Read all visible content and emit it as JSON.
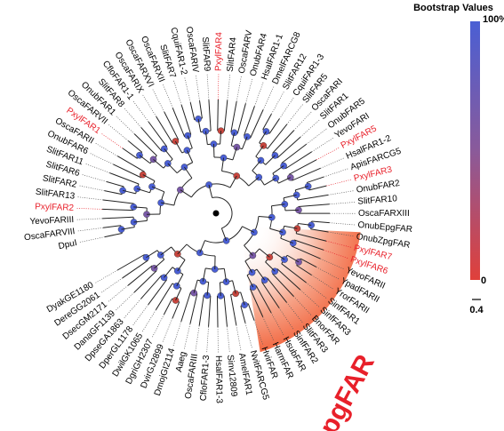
{
  "legend": {
    "title": "Bootstrap Values",
    "max_label": "100%",
    "min_label": "0"
  },
  "scale_bar": "0.4",
  "clade_label": "pgFAR",
  "leaves": [
    {
      "label": "DpuI",
      "color": "#000000"
    },
    {
      "label": "OscaFARVIII",
      "color": "#000000"
    },
    {
      "label": "YevoFARIII",
      "color": "#000000"
    },
    {
      "label": "PxylFAR2",
      "color": "#e8202a"
    },
    {
      "label": "SlitFAR13",
      "color": "#000000"
    },
    {
      "label": "SlitFAR2",
      "color": "#000000"
    },
    {
      "label": "SlitFAR6",
      "color": "#000000"
    },
    {
      "label": "SlitFAR11",
      "color": "#000000"
    },
    {
      "label": "OnubFAR6",
      "color": "#000000"
    },
    {
      "label": "OscaFARII",
      "color": "#000000"
    },
    {
      "label": "PxylFAR1",
      "color": "#e8202a"
    },
    {
      "label": "OscaFARVII",
      "color": "#000000"
    },
    {
      "label": "OnubFAR1",
      "color": "#000000"
    },
    {
      "label": "SlitFAR8",
      "color": "#000000"
    },
    {
      "label": "CfloFAR1-1",
      "color": "#000000"
    },
    {
      "label": "OscaFARIX",
      "color": "#000000"
    },
    {
      "label": "OscaFARXVI",
      "color": "#000000"
    },
    {
      "label": "OscaFARXII",
      "color": "#000000"
    },
    {
      "label": "SlitFAR7",
      "color": "#000000"
    },
    {
      "label": "CquiFAR1-2",
      "color": "#000000"
    },
    {
      "label": "OscaFARIV",
      "color": "#000000"
    },
    {
      "label": "SlitFAR9",
      "color": "#000000"
    },
    {
      "label": "PxylFAR4",
      "color": "#e8202a"
    },
    {
      "label": "SlitFAR4",
      "color": "#000000"
    },
    {
      "label": "OscaFARV",
      "color": "#000000"
    },
    {
      "label": "OnubFAR4",
      "color": "#000000"
    },
    {
      "label": "HsalFAR1-1",
      "color": "#000000"
    },
    {
      "label": "DmelFARCG8",
      "color": "#000000"
    },
    {
      "label": "SlitFAR12",
      "color": "#000000"
    },
    {
      "label": "CquiFAR1-3",
      "color": "#000000"
    },
    {
      "label": "SlitFAR5",
      "color": "#000000"
    },
    {
      "label": "OscaFARI",
      "color": "#000000"
    },
    {
      "label": "SlitFAR1",
      "color": "#000000"
    },
    {
      "label": "OnubFAR5",
      "color": "#000000"
    },
    {
      "label": "YevoFARI",
      "color": "#000000"
    },
    {
      "label": "PxylFAR5",
      "color": "#e8202a"
    },
    {
      "label": "HsalFAR1-2",
      "color": "#000000"
    },
    {
      "label": "ApisFARCG5",
      "color": "#000000"
    },
    {
      "label": "PxylFAR3",
      "color": "#e8202a"
    },
    {
      "label": "OnubFAR2",
      "color": "#000000"
    },
    {
      "label": "SlitFAR10",
      "color": "#000000"
    },
    {
      "label": "OscaFARXIII",
      "color": "#000000"
    },
    {
      "label": "OnubEpgFAR",
      "color": "#000000"
    },
    {
      "label": "OnubZpgFAR",
      "color": "#000000"
    },
    {
      "label": "PxylFAR7",
      "color": "#e8202a"
    },
    {
      "label": "PxylFAR6",
      "color": "#e8202a"
    },
    {
      "label": "YevoFARII",
      "color": "#000000"
    },
    {
      "label": "YpadFARII",
      "color": "#000000"
    },
    {
      "label": "YrorFARII",
      "color": "#000000"
    },
    {
      "label": "SinfFAR1",
      "color": "#000000"
    },
    {
      "label": "SinfFAR3",
      "color": "#000000"
    },
    {
      "label": "BnorFAR",
      "color": "#000000"
    },
    {
      "label": "SlitFAR3",
      "color": "#000000"
    },
    {
      "label": "SinfFAR2",
      "color": "#000000"
    },
    {
      "label": "HsubFAR",
      "color": "#000000"
    },
    {
      "label": "HarmFAR",
      "color": "#000000"
    },
    {
      "label": "HvirFAR",
      "color": "#000000"
    },
    {
      "label": "NvitFARCG5",
      "color": "#000000"
    },
    {
      "label": "AmelFAR1",
      "color": "#000000"
    },
    {
      "label": "Sinv12809",
      "color": "#000000"
    },
    {
      "label": "HsalFAR1-3",
      "color": "#000000"
    },
    {
      "label": "CfloFAR1-3",
      "color": "#000000"
    },
    {
      "label": "OscaFARIII",
      "color": "#000000"
    },
    {
      "label": "Aaeg",
      "color": "#000000"
    },
    {
      "label": "DmojGI2114",
      "color": "#000000"
    },
    {
      "label": "DvirGJ2899",
      "color": "#000000"
    },
    {
      "label": "DgriGH2307",
      "color": "#000000"
    },
    {
      "label": "DwilGK1065",
      "color": "#000000"
    },
    {
      "label": "DperGL1178",
      "color": "#000000"
    },
    {
      "label": "DpseGA1863",
      "color": "#000000"
    },
    {
      "label": "DanaGF1139",
      "color": "#000000"
    },
    {
      "label": "DsecGM2171",
      "color": "#000000"
    },
    {
      "label": "DereGG2061",
      "color": "#000000"
    },
    {
      "label": "DyakGE1180",
      "color": "#000000"
    }
  ]
}
